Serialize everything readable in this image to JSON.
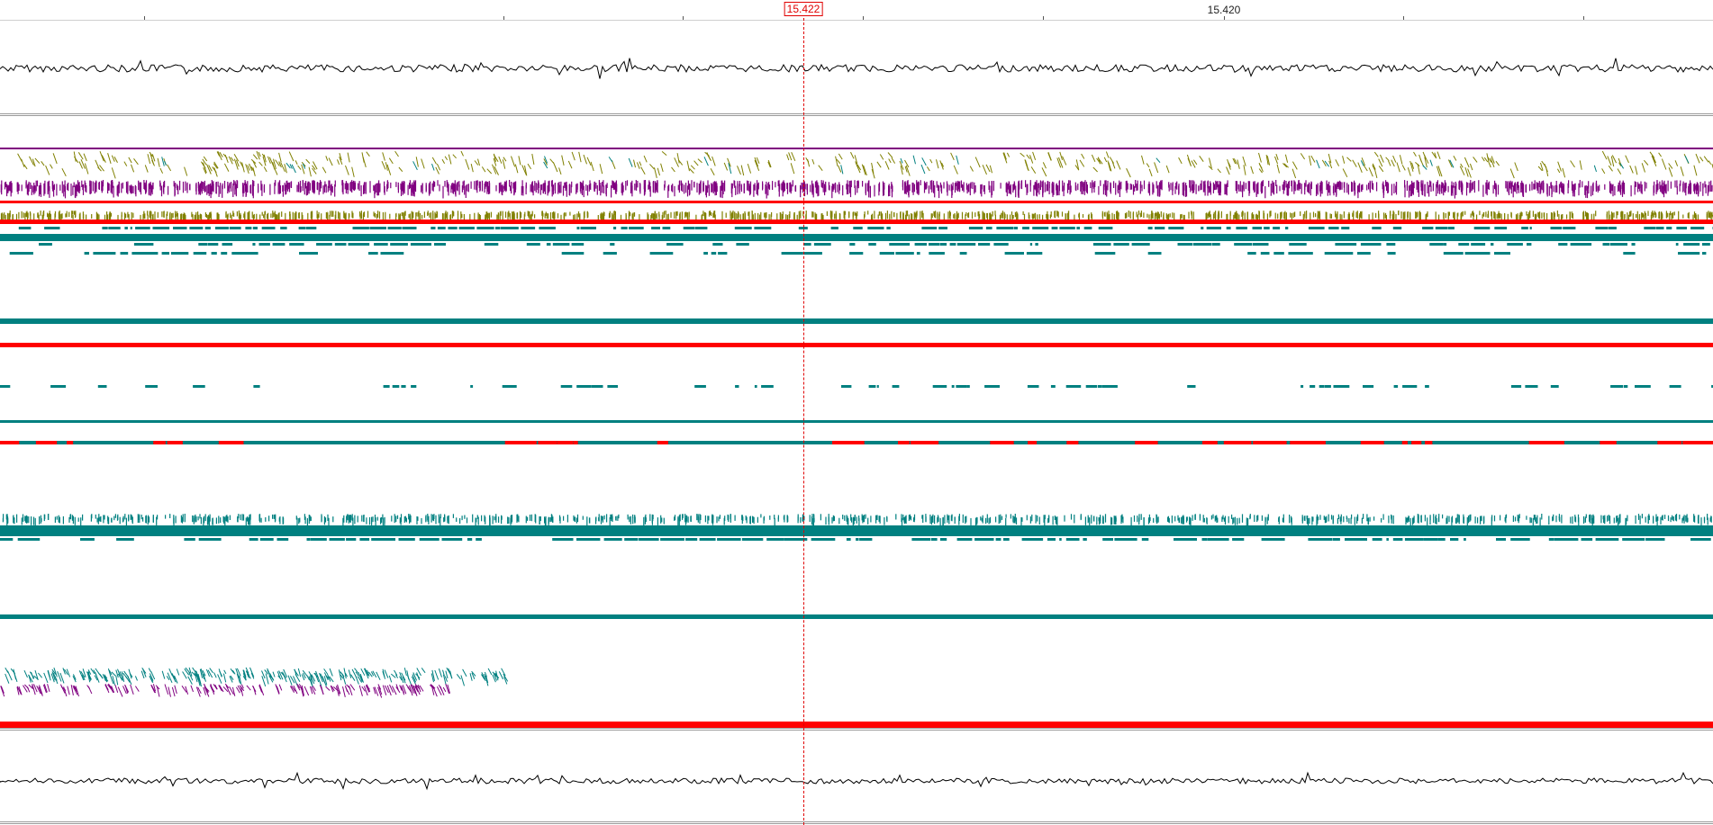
{
  "ruler": {
    "labels": [
      "15.420"
    ],
    "cursor_position": "15.422"
  },
  "colors": {
    "background": "#ffffff",
    "cursor": "#e00000",
    "coverage": "#000000",
    "forward_reads": "#800080",
    "reverse_reads": "#008080",
    "olive_reads": "#808000",
    "mismatch": "#ff0000",
    "divider": "#9a9a9a"
  },
  "tracks": [
    "coverage-top",
    "alignment-block-1",
    "alignment-block-2",
    "alignment-block-3",
    "alignment-block-4",
    "coverage-bottom"
  ]
}
